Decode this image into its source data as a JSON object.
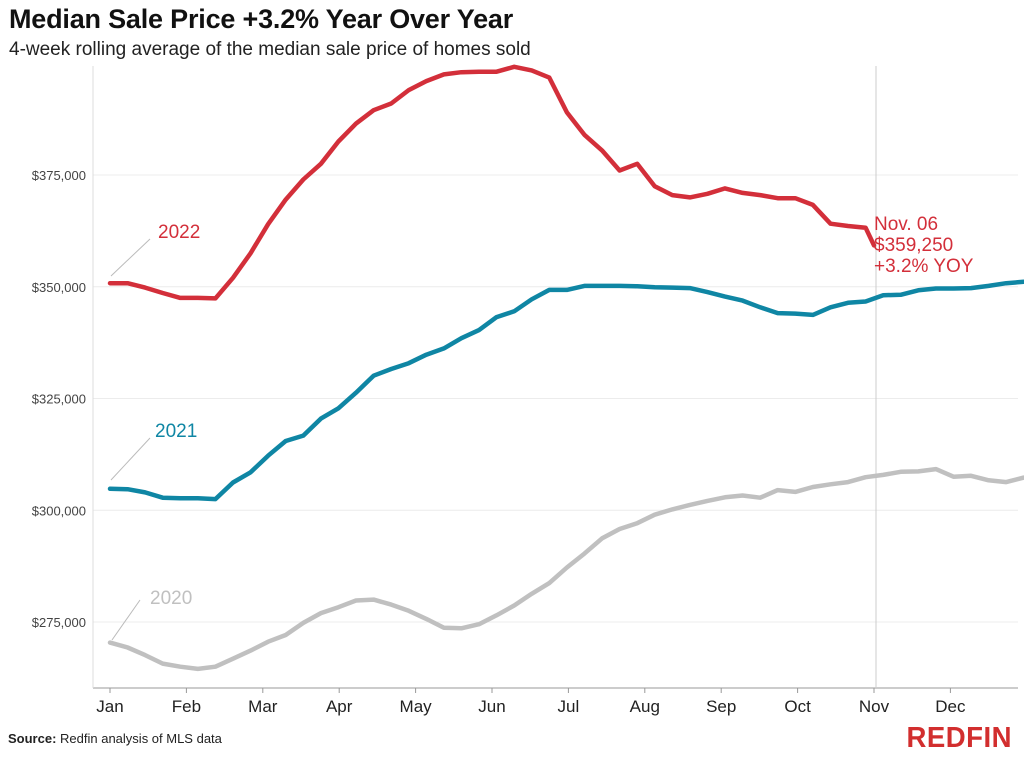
{
  "header": {
    "title": "Median Sale Price +3.2% Year Over Year",
    "subtitle": "4-week rolling average of the median sale price of homes sold"
  },
  "footer": {
    "source_label": "Source:",
    "source_text": "Redfin analysis of MLS data",
    "logo": "REDFIN"
  },
  "colors": {
    "2022": "#d32f3a",
    "2021": "#0f86a4",
    "2020": "#c0c0c0",
    "grid": "#ececec",
    "axis": "#444444"
  },
  "chart_data": {
    "type": "line",
    "title": "Median Sale Price +3.2% Year Over Year",
    "subtitle": "4-week rolling average of the median sale price of homes sold",
    "categories": [
      "Jan",
      "Feb",
      "Mar",
      "Apr",
      "May",
      "Jun",
      "Jul",
      "Aug",
      "Sep",
      "Oct",
      "Nov",
      "Dec"
    ],
    "ylim": [
      259000,
      398000
    ],
    "y_ticks": [
      275000,
      300000,
      325000,
      350000,
      375000
    ],
    "y_tick_labels": [
      "$275,000",
      "$300,000",
      "$325,000",
      "$350,000",
      "$375,000"
    ],
    "grid": true,
    "marker_line": "Nov",
    "series": [
      {
        "name": "2022",
        "x": [
          0.0,
          0.23,
          0.46,
          0.69,
          0.92,
          1.15,
          1.38,
          1.61,
          1.84,
          2.07,
          2.3,
          2.53,
          2.76,
          2.99,
          3.22,
          3.45,
          3.68,
          3.91,
          4.14,
          4.37,
          4.6,
          4.83,
          5.06,
          5.29,
          5.52,
          5.75,
          5.98,
          6.21,
          6.44,
          6.67,
          6.9,
          7.13,
          7.36,
          7.59,
          7.82,
          8.05,
          8.28,
          8.51,
          8.74,
          8.97,
          9.2,
          9.43,
          9.66,
          9.89,
          10.0
        ],
        "values": [
          350800,
          350800,
          349800,
          348600,
          347500,
          347500,
          347400,
          352000,
          357500,
          364000,
          369500,
          374000,
          377500,
          382500,
          386500,
          389500,
          391000,
          394000,
          396000,
          397500,
          398000,
          398100,
          398100,
          399200,
          398400,
          396800,
          389000,
          384000,
          380500,
          376000,
          377500,
          372500,
          370500,
          370000,
          370800,
          372000,
          371000,
          370500,
          369800,
          369800,
          368300,
          364100,
          363600,
          363200,
          359250
        ]
      },
      {
        "name": "2021",
        "x": [
          0.0,
          0.23,
          0.46,
          0.69,
          0.92,
          1.15,
          1.38,
          1.61,
          1.84,
          2.07,
          2.3,
          2.53,
          2.76,
          2.99,
          3.22,
          3.45,
          3.68,
          3.91,
          4.14,
          4.37,
          4.6,
          4.83,
          5.06,
          5.29,
          5.52,
          5.75,
          5.98,
          6.21,
          6.44,
          6.67,
          6.9,
          7.13,
          7.36,
          7.59,
          7.82,
          8.05,
          8.28,
          8.51,
          8.74,
          8.97,
          9.2,
          9.43,
          9.66,
          9.89,
          10.12,
          10.35,
          10.58,
          10.81,
          11.04,
          11.27,
          11.5,
          11.73,
          11.96
        ],
        "values": [
          304800,
          304700,
          304000,
          302800,
          302700,
          302700,
          302500,
          306200,
          308500,
          312200,
          315500,
          316700,
          320500,
          322800,
          326300,
          330100,
          331600,
          332900,
          334800,
          336200,
          338500,
          340300,
          343200,
          344500,
          347200,
          349300,
          349300,
          350200,
          350200,
          350200,
          350100,
          349900,
          349800,
          349700,
          348800,
          347800,
          346900,
          345400,
          344100,
          344000,
          343700,
          345400,
          346400,
          346700,
          348100,
          348200,
          349200,
          349600,
          349600,
          349700,
          350200,
          350800,
          351100
        ]
      },
      {
        "name": "2020",
        "x": [
          0.0,
          0.23,
          0.46,
          0.69,
          0.92,
          1.15,
          1.38,
          1.61,
          1.84,
          2.07,
          2.3,
          2.53,
          2.76,
          2.99,
          3.22,
          3.45,
          3.68,
          3.91,
          4.14,
          4.37,
          4.6,
          4.83,
          5.06,
          5.29,
          5.52,
          5.75,
          5.98,
          6.21,
          6.44,
          6.67,
          6.9,
          7.13,
          7.36,
          7.59,
          7.82,
          8.05,
          8.28,
          8.51,
          8.74,
          8.97,
          9.2,
          9.43,
          9.66,
          9.89,
          10.12,
          10.35,
          10.58,
          10.81,
          11.04,
          11.27,
          11.5,
          11.73,
          11.96
        ],
        "values": [
          270400,
          269300,
          267600,
          265700,
          265000,
          264500,
          265000,
          266800,
          268600,
          270600,
          272100,
          274800,
          277000,
          278300,
          279800,
          280000,
          278900,
          277500,
          275700,
          273700,
          273600,
          274500,
          276500,
          278700,
          281300,
          283700,
          287200,
          290300,
          293700,
          295800,
          297100,
          299000,
          300200,
          301200,
          302100,
          302900,
          303300,
          302800,
          304500,
          304100,
          305200,
          305800,
          306300,
          307400,
          307900,
          308600,
          308700,
          309200,
          307500,
          307700,
          306700,
          306300,
          307300
        ]
      }
    ],
    "series_labels": [
      "2022",
      "2021",
      "2020"
    ],
    "annotation": [
      "Nov. 06",
      "$359,250",
      "+3.2% YOY"
    ]
  }
}
